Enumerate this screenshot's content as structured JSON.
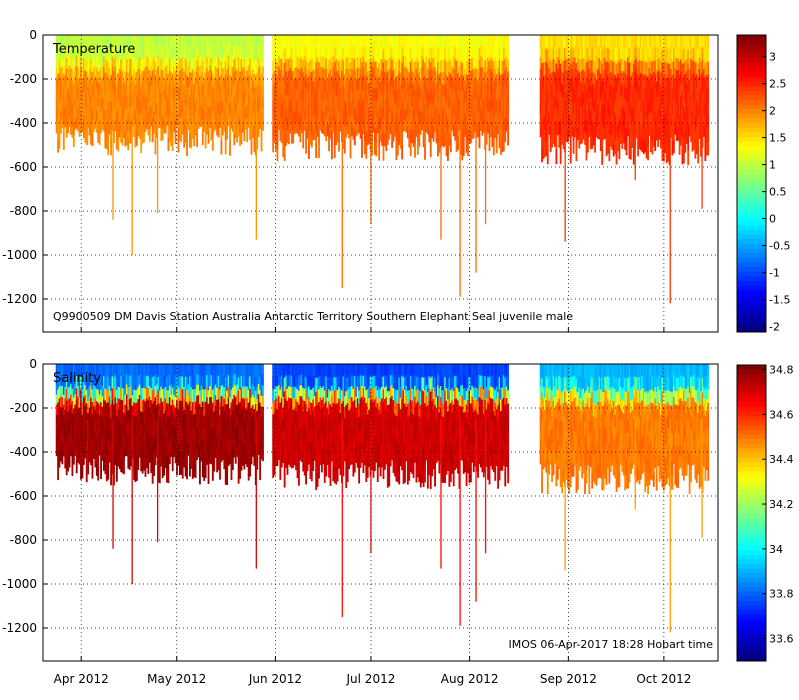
{
  "chart_data": [
    {
      "type": "heatmap",
      "title": "Temperature",
      "annotation": "Q9900509 DM Davis Station Australia Antarctic Territory Southern Elephant Seal juvenile male",
      "x_ticks": [
        "Apr 2012",
        "May 2012",
        "Jun 2012",
        "Jul 2012",
        "Aug 2012",
        "Sep 2012",
        "Oct 2012"
      ],
      "x_tick_days": [
        0,
        30,
        61,
        91,
        122,
        153,
        183
      ],
      "x_range_days": [
        -12,
        200
      ],
      "y_ticks": [
        0,
        -200,
        -400,
        -600,
        -800,
        -1000,
        -1200
      ],
      "ylim": [
        -1350,
        0
      ],
      "colorbar": {
        "min": -2.1,
        "max": 3.4,
        "ticks": [
          3,
          2.5,
          2,
          1.5,
          1,
          0.5,
          0,
          -0.5,
          -1,
          -1.5,
          -2
        ]
      },
      "segments": [
        {
          "start": -8,
          "end": 57,
          "surface": 1.0,
          "deep": 2.0,
          "depth": 480
        },
        {
          "start": 60,
          "end": 134,
          "surface": 1.3,
          "deep": 2.2,
          "depth": 500
        },
        {
          "start": 144,
          "end": 197,
          "surface": 1.5,
          "deep": 2.5,
          "depth": 520
        }
      ],
      "profile_drops": [
        {
          "day": 2,
          "depth": 500
        },
        {
          "day": 10,
          "depth": 840
        },
        {
          "day": 16,
          "depth": 1000
        },
        {
          "day": 24,
          "depth": 810
        },
        {
          "day": 55,
          "depth": 930
        },
        {
          "day": 82,
          "depth": 1150
        },
        {
          "day": 91,
          "depth": 860
        },
        {
          "day": 113,
          "depth": 930
        },
        {
          "day": 119,
          "depth": 1190
        },
        {
          "day": 124,
          "depth": 1080
        },
        {
          "day": 127,
          "depth": 860
        },
        {
          "day": 152,
          "depth": 940
        },
        {
          "day": 174,
          "depth": 660
        },
        {
          "day": 185,
          "depth": 1220
        },
        {
          "day": 195,
          "depth": 790
        }
      ]
    },
    {
      "type": "heatmap",
      "title": "Salinity",
      "annotation": "IMOS 06-Apr-2017 18:28 Hobart time",
      "x_ticks": [
        "Apr 2012",
        "May 2012",
        "Jun 2012",
        "Jul 2012",
        "Aug 2012",
        "Sep 2012",
        "Oct 2012"
      ],
      "x_tick_days": [
        0,
        30,
        61,
        91,
        122,
        153,
        183
      ],
      "x_range_days": [
        -12,
        200
      ],
      "y_ticks": [
        0,
        -200,
        -400,
        -600,
        -800,
        -1000,
        -1200
      ],
      "ylim": [
        -1350,
        0
      ],
      "colorbar": {
        "min": 33.5,
        "max": 34.82,
        "ticks": [
          34.8,
          34.6,
          34.4,
          34.2,
          34,
          33.8,
          33.6
        ]
      },
      "segments": [
        {
          "start": -8,
          "end": 57,
          "surface": 33.8,
          "deep": 34.78,
          "depth": 480
        },
        {
          "start": 60,
          "end": 134,
          "surface": 33.75,
          "deep": 34.72,
          "depth": 500
        },
        {
          "start": 144,
          "end": 197,
          "surface": 33.9,
          "deep": 34.5,
          "depth": 520
        }
      ],
      "profile_drops": [
        {
          "day": 2,
          "depth": 500
        },
        {
          "day": 10,
          "depth": 840
        },
        {
          "day": 16,
          "depth": 1000
        },
        {
          "day": 24,
          "depth": 810
        },
        {
          "day": 55,
          "depth": 930
        },
        {
          "day": 82,
          "depth": 1150
        },
        {
          "day": 91,
          "depth": 860
        },
        {
          "day": 113,
          "depth": 930
        },
        {
          "day": 119,
          "depth": 1190
        },
        {
          "day": 124,
          "depth": 1080
        },
        {
          "day": 127,
          "depth": 860
        },
        {
          "day": 152,
          "depth": 940
        },
        {
          "day": 174,
          "depth": 660
        },
        {
          "day": 185,
          "depth": 1220
        },
        {
          "day": 195,
          "depth": 790
        }
      ]
    }
  ]
}
